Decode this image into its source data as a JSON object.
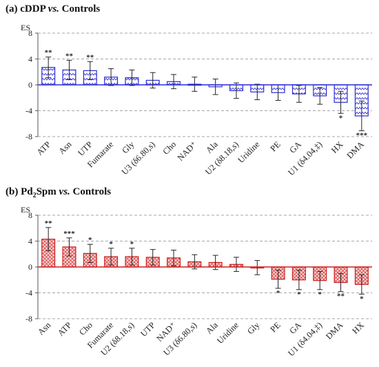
{
  "panels": [
    {
      "title_label": "(a) cDDP",
      "title_vs": "vs.",
      "title_rest": "Controls"
    },
    {
      "title_label": "(b) Pd",
      "title_sub": "2",
      "title_mid": "Spm",
      "title_vs": "vs.",
      "title_rest": "Controls"
    }
  ],
  "chart_data": [
    {
      "type": "bar",
      "ylabel": "ES",
      "ylim": [
        -8,
        8
      ],
      "yticks": [
        8,
        4,
        0,
        -4,
        -8
      ],
      "grid": true,
      "color": "#2a2ad6",
      "fill_color": "#d7d7f6",
      "pattern": "wave",
      "categories": [
        "ATP",
        "Asn",
        "UTP",
        "Fumarate",
        "Gly",
        "U3 (δ6.80,s)",
        "Cho",
        "NAD⁺",
        "Ala",
        "U2 (δ8.18,s)",
        "Uridine",
        "PE",
        "GA",
        "U1 (δ4.04,‡)",
        "HX",
        "DMA"
      ],
      "values": [
        2.7,
        2.3,
        2.2,
        1.2,
        1.1,
        0.7,
        0.5,
        0.1,
        -0.3,
        -0.9,
        -1.1,
        -1.2,
        -1.4,
        -1.7,
        -2.7,
        -4.8
      ],
      "errors": [
        1.6,
        1.5,
        1.4,
        1.3,
        1.2,
        1.2,
        1.1,
        1.1,
        1.2,
        1.2,
        1.2,
        1.2,
        1.3,
        1.3,
        1.7,
        2.3
      ],
      "significance": [
        "**",
        "**",
        "**",
        "",
        "",
        "",
        "",
        "",
        "",
        "",
        "",
        "",
        "",
        "",
        "*",
        "***"
      ]
    },
    {
      "type": "bar",
      "ylabel": "ES",
      "ylim": [
        -8,
        8
      ],
      "yticks": [
        8,
        4,
        0,
        -4,
        -8
      ],
      "grid": true,
      "color": "#cc2020",
      "fill_color": "#f4cccc",
      "pattern": "cross",
      "categories": [
        "Asn",
        "ATP",
        "Cho",
        "Fumarate",
        "U2 (δ8.18,s)",
        "UTP",
        "NAD⁺",
        "U3 (δ6.80,s)",
        "Ala",
        "Uridine",
        "Gly",
        "PE",
        "GA",
        "U1 (δ4.04,‡)",
        "DMA",
        "HX"
      ],
      "values": [
        4.3,
        3.1,
        2.1,
        1.6,
        1.6,
        1.5,
        1.4,
        0.8,
        0.7,
        0.4,
        -0.1,
        -1.9,
        -2.0,
        -2.1,
        -2.4,
        -2.7
      ],
      "errors": [
        1.8,
        1.4,
        1.4,
        1.3,
        1.3,
        1.2,
        1.2,
        1.1,
        1.1,
        1.1,
        1.1,
        1.4,
        1.5,
        1.4,
        1.4,
        1.5
      ],
      "significance": [
        "**",
        "***",
        "*",
        "*",
        "*",
        "",
        "",
        "",
        "",
        "",
        "",
        "*",
        "*",
        "*",
        "**",
        "*"
      ]
    }
  ]
}
